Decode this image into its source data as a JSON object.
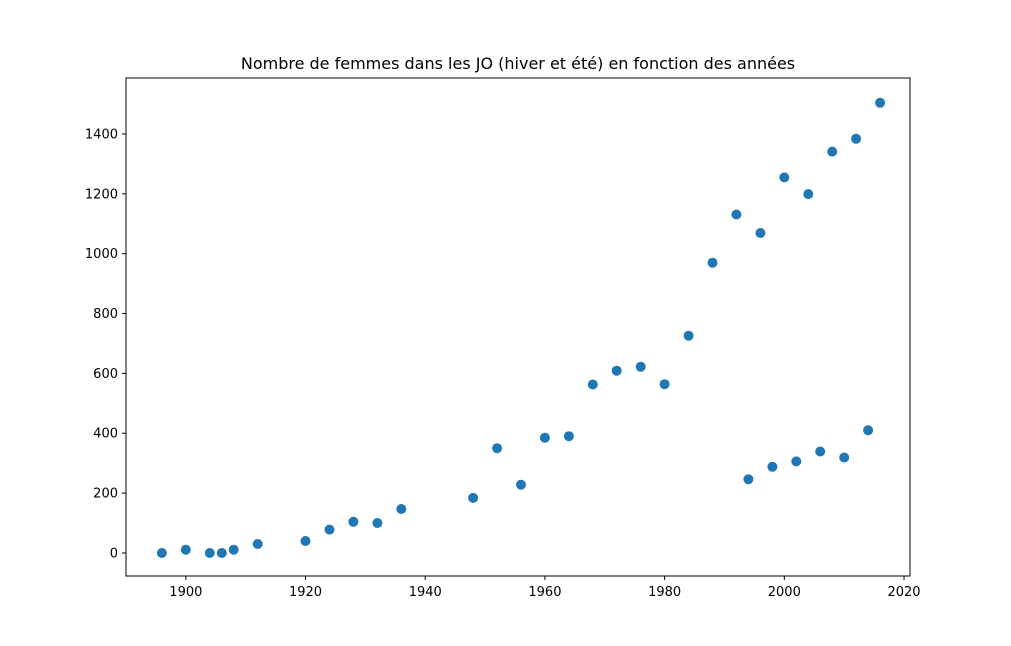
{
  "chart_data": {
    "type": "scatter",
    "title": "Nombre de femmes dans les JO (hiver et été) en fonction des années",
    "xlabel": "",
    "ylabel": "",
    "xlim": [
      1890,
      2021
    ],
    "ylim": [
      -77,
      1587
    ],
    "x_ticks": [
      1900,
      1920,
      1940,
      1960,
      1980,
      2000,
      2020
    ],
    "y_ticks": [
      0,
      200,
      400,
      600,
      800,
      1000,
      1200,
      1400
    ],
    "grid": false,
    "legend": "none",
    "marker_color": "#1f77b4",
    "series": [
      {
        "points": [
          [
            1896,
            0
          ],
          [
            1900,
            11
          ],
          [
            1904,
            0
          ],
          [
            1906,
            0
          ],
          [
            1908,
            11
          ],
          [
            1912,
            30
          ],
          [
            1920,
            40
          ],
          [
            1924,
            78
          ],
          [
            1928,
            104
          ],
          [
            1932,
            100
          ],
          [
            1936,
            147
          ],
          [
            1948,
            184
          ],
          [
            1952,
            350
          ],
          [
            1956,
            228
          ],
          [
            1960,
            385
          ],
          [
            1964,
            390
          ],
          [
            1968,
            563
          ],
          [
            1972,
            609
          ],
          [
            1976,
            622
          ],
          [
            1980,
            564
          ],
          [
            1984,
            726
          ],
          [
            1988,
            970
          ],
          [
            1992,
            1131
          ],
          [
            1996,
            1069
          ],
          [
            2000,
            1255
          ],
          [
            2004,
            1199
          ],
          [
            2008,
            1341
          ],
          [
            2012,
            1384
          ],
          [
            2016,
            1504
          ],
          [
            1994,
            246
          ],
          [
            1998,
            288
          ],
          [
            2002,
            306
          ],
          [
            2006,
            339
          ],
          [
            2010,
            319
          ],
          [
            2014,
            410
          ]
        ]
      }
    ]
  }
}
